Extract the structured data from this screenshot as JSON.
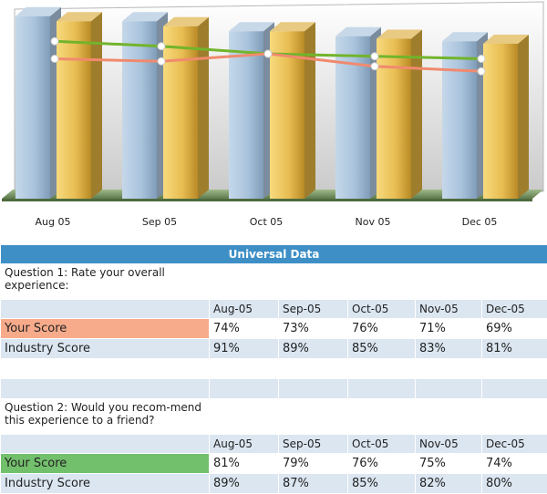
{
  "chart_data": {
    "type": "bar",
    "categories": [
      "Aug 05",
      "Sep 05",
      "Oct 05",
      "Nov 05",
      "Dec 05"
    ],
    "ylim": [
      0,
      100
    ],
    "series": [
      {
        "type": "bar",
        "values": [
          91,
          89,
          85,
          83,
          81
        ],
        "color": "#a9c3dc"
      },
      {
        "type": "bar",
        "values": [
          89,
          87,
          85,
          82,
          80
        ],
        "color": "#dcae3e"
      },
      {
        "type": "line",
        "values": [
          81,
          79,
          76,
          75,
          74
        ],
        "color": "#72b42c"
      },
      {
        "type": "line",
        "values": [
          74,
          73,
          76,
          71,
          69
        ],
        "color": "#f08a6e"
      }
    ]
  },
  "table": {
    "title": "Universal Data",
    "q1": {
      "question": "Question 1: Rate your overall experience:",
      "months": [
        "Aug-05",
        "Sep-05",
        "Oct-05",
        "Nov-05",
        "Dec-05"
      ],
      "rows": [
        {
          "label": "Your Score",
          "values": [
            "74%",
            "73%",
            "76%",
            "71%",
            "69%"
          ]
        },
        {
          "label": "Industry Score",
          "values": [
            "91%",
            "89%",
            "85%",
            "83%",
            "81%"
          ]
        }
      ]
    },
    "q2": {
      "question": "Question 2: Would you recom-mend this experience to a friend?",
      "months": [
        "Aug-05",
        "Sep-05",
        "Oct-05",
        "Nov-05",
        "Dec-05"
      ],
      "rows": [
        {
          "label": "Your Score",
          "values": [
            "81%",
            "79%",
            "76%",
            "75%",
            "74%"
          ]
        },
        {
          "label": "Industry Score",
          "values": [
            "89%",
            "87%",
            "85%",
            "82%",
            "80%"
          ]
        }
      ]
    }
  }
}
